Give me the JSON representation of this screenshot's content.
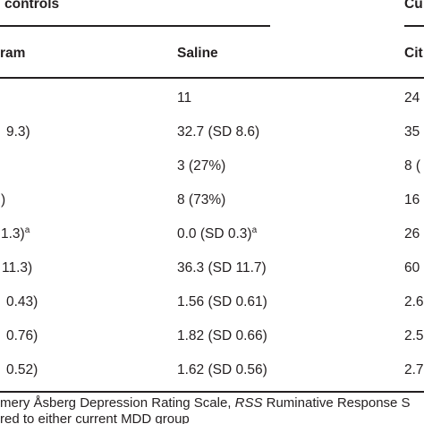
{
  "header": {
    "group_controls": "controls",
    "group_current": "Cu"
  },
  "columns": {
    "col1": "ram",
    "col2": "Saline",
    "col3": "Cit"
  },
  "rows": [
    {
      "c1": "",
      "c2": "11",
      "c2_sup": "",
      "c3": "24"
    },
    {
      "c1": "9.3)",
      "c2": "32.7 (SD 8.6)",
      "c2_sup": "",
      "c3": "35"
    },
    {
      "c1": "",
      "c2": "3 (27%)",
      "c2_sup": "",
      "c3": "8 ("
    },
    {
      "c1": ")",
      "c2": "8 (73%)",
      "c2_sup": "",
      "c3": "16"
    },
    {
      "c1": "1.3)",
      "c1_sup": "a",
      "c2": "0.0 (SD 0.3)",
      "c2_sup": "a",
      "c3": "26"
    },
    {
      "c1": "11.3)",
      "c2": "36.3 (SD 11.7)",
      "c2_sup": "",
      "c3": "60"
    },
    {
      "c1": "0.43)",
      "c2": "1.56 (SD 0.61)",
      "c2_sup": "",
      "c3": "2.6"
    },
    {
      "c1": "0.76)",
      "c2": "1.82 (SD 0.66)",
      "c2_sup": "",
      "c3": "2.5"
    },
    {
      "c1": "0.52)",
      "c2": "1.62 (SD 0.56)",
      "c2_sup": "",
      "c3": "2.7"
    }
  ],
  "footnotes": {
    "line1_a": "mery Åsberg Depression Rating Scale, ",
    "line1_abbr": "RSS",
    "line1_b": " Ruminative Response S",
    "line2": "red to either current MDD group"
  }
}
